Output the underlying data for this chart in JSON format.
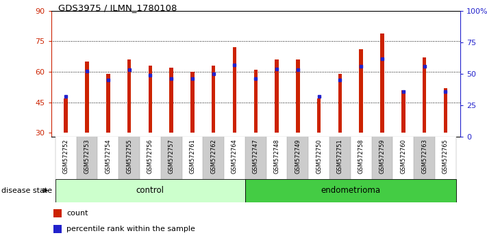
{
  "title": "GDS3975 / ILMN_1780108",
  "samples": [
    "GSM572752",
    "GSM572753",
    "GSM572754",
    "GSM572755",
    "GSM572756",
    "GSM572757",
    "GSM572761",
    "GSM572762",
    "GSM572764",
    "GSM572747",
    "GSM572748",
    "GSM572749",
    "GSM572750",
    "GSM572751",
    "GSM572758",
    "GSM572759",
    "GSM572760",
    "GSM572763",
    "GSM572765"
  ],
  "count_values": [
    47,
    65,
    59,
    66,
    63,
    62,
    60,
    63,
    72,
    61,
    66,
    66,
    47,
    59,
    71,
    79,
    51,
    67,
    52
  ],
  "percentile_values": [
    32,
    52,
    45,
    53,
    49,
    46,
    46,
    50,
    57,
    46,
    54,
    53,
    32,
    45,
    56,
    62,
    36,
    56,
    36
  ],
  "baseline": 30,
  "ylim_left": [
    28,
    90
  ],
  "ylim_right": [
    0,
    100
  ],
  "yticks_left": [
    30,
    45,
    60,
    75,
    90
  ],
  "yticks_right": [
    0,
    25,
    50,
    75,
    100
  ],
  "n_control": 9,
  "n_total": 19,
  "bar_color": "#cc2200",
  "marker_color": "#2222cc",
  "bar_width": 0.18,
  "xlabel_color": "#cc2200",
  "ylabel_right_color": "#2222cc",
  "control_color": "#ccffcc",
  "endometrioma_color": "#44cc44",
  "label_area_color": "#cccccc",
  "disease_label": "disease state",
  "control_label": "control",
  "endometrioma_label": "endometrioma",
  "legend_count": "count",
  "legend_percentile": "percentile rank within the sample"
}
